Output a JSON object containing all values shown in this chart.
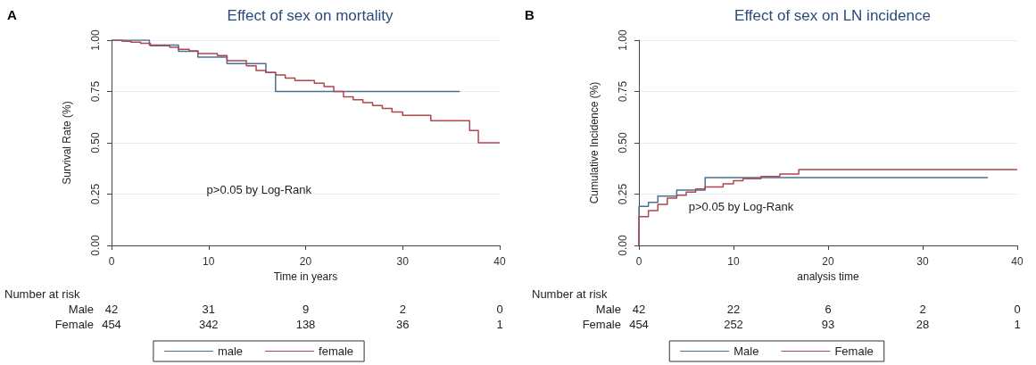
{
  "chart_data": [
    {
      "type": "step",
      "title": "Effect of sex on mortality",
      "xlabel": "Time in years",
      "ylabel": "Survival Rate (%)",
      "xlim": [
        0,
        40
      ],
      "xticks": [
        0,
        10,
        20,
        30,
        40
      ],
      "ylim": [
        0,
        1
      ],
      "yticks": [
        {
          "value": 0,
          "label": "0.00"
        },
        {
          "value": 0.25,
          "label": "0.25"
        },
        {
          "value": 0.5,
          "label": "0.50"
        },
        {
          "value": 0.75,
          "label": "0.75"
        },
        {
          "value": 1,
          "label": "1.00"
        }
      ],
      "grid": "y",
      "legend": "bottom",
      "marker": "none",
      "line_style": "solid",
      "series": [
        {
          "name": "male",
          "color": "#4a6f94",
          "x": [
            0,
            3.9,
            6.9,
            8.9,
            11.9,
            15.9,
            16.9,
            35.9
          ],
          "values": [
            1.0,
            0.976,
            0.946,
            0.917,
            0.886,
            0.842,
            0.75,
            0.75
          ]
        },
        {
          "name": "female",
          "color": "#b0464f",
          "x": [
            0,
            1.1,
            2,
            3,
            4,
            6,
            6.9,
            8,
            8.9,
            10.9,
            11.9,
            13.9,
            14.9,
            15.9,
            16.9,
            17.9,
            18.9,
            20.9,
            21.9,
            22.9,
            23.9,
            24.9,
            25.9,
            26.9,
            27.9,
            28.9,
            30,
            32.9,
            36.9,
            37.8,
            40
          ],
          "values": [
            1.0,
            0.995,
            0.99,
            0.985,
            0.973,
            0.965,
            0.955,
            0.948,
            0.935,
            0.925,
            0.9,
            0.875,
            0.852,
            0.842,
            0.83,
            0.815,
            0.803,
            0.79,
            0.774,
            0.75,
            0.724,
            0.71,
            0.696,
            0.682,
            0.667,
            0.65,
            0.634,
            0.608,
            0.56,
            0.5,
            0.5
          ]
        }
      ],
      "annotations": [
        "A",
        "p>0.05 by Log-Rank",
        "Number at risk",
        "Male",
        "42",
        "31",
        "9",
        "2",
        "0",
        "Female",
        "454",
        "342",
        "138",
        "36",
        "1"
      ]
    },
    {
      "type": "step",
      "title": "Effect of sex on LN incidence",
      "xlabel": "analysis time",
      "ylabel": "Cumulative Incidence (%)",
      "xlim": [
        0,
        40
      ],
      "xticks": [
        0,
        10,
        20,
        30,
        40
      ],
      "ylim": [
        0,
        1
      ],
      "yticks": [
        {
          "value": 0,
          "label": "0.00"
        },
        {
          "value": 0.25,
          "label": "0.25"
        },
        {
          "value": 0.5,
          "label": "0.50"
        },
        {
          "value": 0.75,
          "label": "0.75"
        },
        {
          "value": 1,
          "label": "1.00"
        }
      ],
      "grid": "y",
      "legend": "bottom",
      "marker": "none",
      "line_style": "solid",
      "series": [
        {
          "name": "Male",
          "color": "#4a6f94",
          "x": [
            0,
            0.01,
            1,
            2,
            4,
            7,
            36.9
          ],
          "values": [
            0,
            0.19,
            0.21,
            0.24,
            0.27,
            0.33,
            0.33
          ]
        },
        {
          "name": "Female",
          "color": "#b0464f",
          "x": [
            0,
            0.01,
            1,
            2,
            3,
            4,
            5,
            6,
            7,
            8.9,
            10,
            11,
            12.9,
            14.9,
            16.9,
            40
          ],
          "values": [
            0,
            0.14,
            0.17,
            0.2,
            0.23,
            0.245,
            0.26,
            0.275,
            0.285,
            0.3,
            0.315,
            0.325,
            0.336,
            0.348,
            0.37,
            0.37
          ]
        }
      ],
      "annotations": [
        "B",
        "p>0.05 by Log-Rank",
        "Number at risk",
        "Male",
        "42",
        "22",
        "6",
        "2",
        "0",
        "Female",
        "454",
        "252",
        "93",
        "28",
        "1"
      ]
    }
  ]
}
